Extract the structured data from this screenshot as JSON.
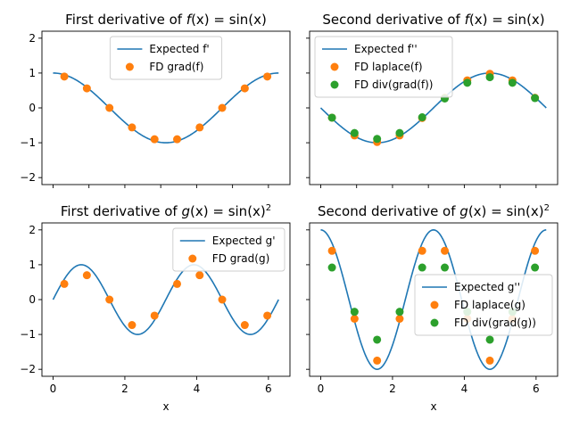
{
  "colors": {
    "expected": "#1f77b4",
    "fd_a": "#ff7f0e",
    "fd_b": "#2ca02c",
    "axis": "#000000",
    "legend_border": "#cccccc"
  },
  "chart_data": [
    {
      "id": "f-first",
      "type": "line",
      "title": {
        "pre": "First derivative of ",
        "fn": "f",
        "mid": "(x) = sin(x)",
        "sup": ""
      },
      "xlabel": "",
      "xlim": [
        -0.31,
        6.6
      ],
      "ylim": [
        -2.2,
        2.2
      ],
      "xticks": [
        0,
        1,
        2,
        3,
        4,
        5,
        6
      ],
      "show_xticklabels": false,
      "yticks": [
        -2,
        -1,
        0,
        1,
        2
      ],
      "show_yticklabels": true,
      "grid": false,
      "legend": {
        "placement": "top-center"
      },
      "expected": {
        "name": "Expected f'",
        "func": "cos"
      },
      "series": [
        {
          "name": "FD grad(f)",
          "color_key": "fd_a",
          "x": [
            0.314,
            0.942,
            1.571,
            2.199,
            2.827,
            3.456,
            4.084,
            4.712,
            5.341,
            5.969
          ],
          "y": [
            0.9,
            0.56,
            0.0,
            -0.56,
            -0.9,
            -0.9,
            -0.56,
            0.0,
            0.56,
            0.9
          ]
        }
      ]
    },
    {
      "id": "f-second",
      "type": "line",
      "title": {
        "pre": "Second derivative of ",
        "fn": "f",
        "mid": "(x) = sin(x)",
        "sup": ""
      },
      "xlabel": "",
      "xlim": [
        -0.31,
        6.6
      ],
      "ylim": [
        -2.2,
        2.2
      ],
      "xticks": [
        0,
        1,
        2,
        3,
        4,
        5,
        6
      ],
      "show_xticklabels": false,
      "yticks": [
        -2,
        -1,
        0,
        1,
        2
      ],
      "show_yticklabels": false,
      "grid": false,
      "legend": {
        "placement": "top-left"
      },
      "expected": {
        "name": "Expected f''",
        "func": "negsin"
      },
      "series": [
        {
          "name": "FD laplace(f)",
          "color_key": "fd_a",
          "x": [
            0.314,
            0.942,
            1.571,
            2.199,
            2.827,
            3.456,
            4.084,
            4.712,
            5.341,
            5.969
          ],
          "y": [
            -0.28,
            -0.79,
            -0.98,
            -0.79,
            -0.29,
            0.29,
            0.79,
            0.98,
            0.79,
            0.29
          ]
        },
        {
          "name": "FD div(grad(f))",
          "color_key": "fd_b",
          "x": [
            0.314,
            0.942,
            1.571,
            2.199,
            2.827,
            3.456,
            4.084,
            4.712,
            5.341,
            5.969
          ],
          "y": [
            -0.28,
            -0.72,
            -0.89,
            -0.72,
            -0.27,
            0.27,
            0.72,
            0.88,
            0.72,
            0.28
          ]
        }
      ]
    },
    {
      "id": "g-first",
      "type": "line",
      "title": {
        "pre": "First derivative of ",
        "fn": "g",
        "mid": "(x) = sin(x)",
        "sup": "2"
      },
      "xlabel": "x",
      "xlim": [
        -0.31,
        6.6
      ],
      "ylim": [
        -2.2,
        2.2
      ],
      "xticks": [
        0,
        2,
        4,
        6
      ],
      "show_xticklabels": true,
      "yticks": [
        -2,
        -1,
        0,
        1,
        2
      ],
      "show_yticklabels": true,
      "grid": false,
      "legend": {
        "placement": "top-right"
      },
      "expected": {
        "name": "Expected g'",
        "func": "sin2x"
      },
      "series": [
        {
          "name": "FD grad(g)",
          "color_key": "fd_a",
          "x": [
            0.314,
            0.942,
            1.571,
            2.199,
            2.827,
            3.456,
            4.084,
            4.712,
            5.341,
            5.969
          ],
          "y": [
            0.45,
            0.7,
            0.0,
            -0.73,
            -0.46,
            0.45,
            0.7,
            0.0,
            -0.73,
            -0.46
          ]
        }
      ]
    },
    {
      "id": "g-second",
      "type": "line",
      "title": {
        "pre": "Second derivative of ",
        "fn": "g",
        "mid": "(x) = sin(x)",
        "sup": "2"
      },
      "xlabel": "x",
      "xlim": [
        -0.31,
        6.6
      ],
      "ylim": [
        -2.2,
        2.2
      ],
      "xticks": [
        0,
        2,
        4,
        6
      ],
      "show_xticklabels": true,
      "yticks": [
        -2,
        -1,
        0,
        1,
        2
      ],
      "show_yticklabels": false,
      "grid": false,
      "legend": {
        "placement": "center-right"
      },
      "expected": {
        "name": "Expected g''",
        "func": "2cos2x"
      },
      "series": [
        {
          "name": "FD laplace(g)",
          "color_key": "fd_a",
          "x": [
            0.314,
            0.942,
            1.571,
            2.199,
            2.827,
            3.456,
            4.084,
            4.712,
            5.341,
            5.969
          ],
          "y": [
            1.4,
            -0.55,
            -1.75,
            -0.55,
            1.4,
            1.4,
            -0.55,
            -1.75,
            -0.55,
            1.4
          ]
        },
        {
          "name": "FD div(grad(g))",
          "color_key": "fd_b",
          "x": [
            0.314,
            0.942,
            1.571,
            2.199,
            2.827,
            3.456,
            4.084,
            4.712,
            5.341,
            5.969
          ],
          "y": [
            0.92,
            -0.35,
            -1.15,
            -0.35,
            0.92,
            0.92,
            -0.35,
            -1.15,
            -0.35,
            0.92
          ]
        }
      ]
    }
  ]
}
